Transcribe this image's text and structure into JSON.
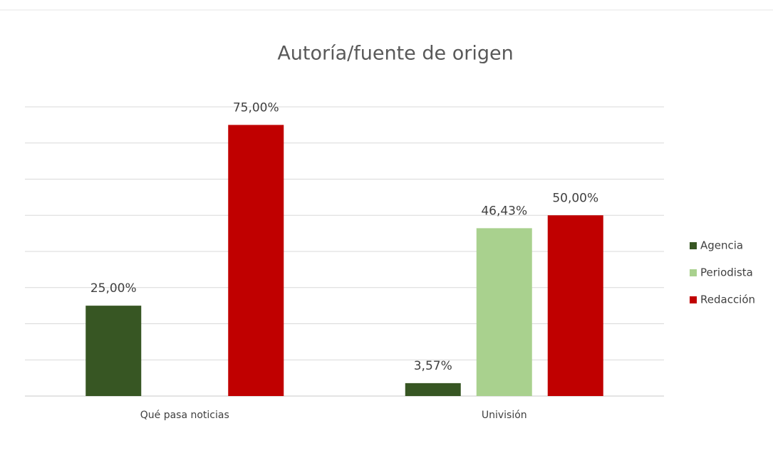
{
  "chart_data": {
    "type": "bar",
    "title": "Autoría/fuente de origen",
    "categories": [
      "Qué pasa noticias",
      "Univisión"
    ],
    "series": [
      {
        "name": "Agencia",
        "color": "#375623",
        "values": [
          25,
          3.57
        ],
        "value_labels": [
          "25,00%",
          "3,57%"
        ]
      },
      {
        "name": "Periodista",
        "color": "#a9d18e",
        "values": [
          null,
          46.43
        ],
        "value_labels": [
          null,
          "46,43%"
        ]
      },
      {
        "name": "Redacción",
        "color": "#c00000",
        "values": [
          75,
          50
        ],
        "value_labels": [
          "75,00%",
          "50,00%"
        ]
      }
    ],
    "ylim": [
      0,
      80
    ],
    "yticks": [
      0,
      10,
      20,
      30,
      40,
      50,
      60,
      70,
      80
    ],
    "grid": true,
    "legend": "right"
  }
}
